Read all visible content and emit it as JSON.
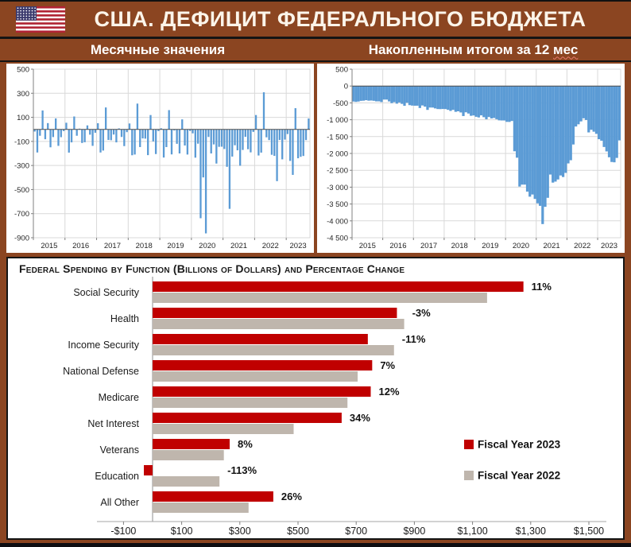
{
  "header": {
    "title": "США. ДЕФИЦИТ ФЕДЕРАЛЬНОГО БЮДЖЕТА",
    "flag": "us-flag"
  },
  "panels": {
    "left_title": "Месячные значения",
    "right_title_main": "Накопленным итогом за 12 ",
    "right_title_squiggle": "мес"
  },
  "colors": {
    "background": "#8B4521",
    "bar_blue": "#5B9BD5",
    "fy2023_red": "#C00000",
    "fy2022_gray": "#BFB6AD",
    "panel": "#FFFFFF"
  },
  "chart_data": [
    {
      "type": "bar",
      "title": "Месячные значения",
      "bar_color": "#5B9BD5",
      "bar_gap": 1.0,
      "margin_left": 34,
      "ylim": [
        -900,
        500
      ],
      "yticks": [
        500,
        300,
        100,
        -100,
        -300,
        -500,
        -700,
        -900
      ],
      "ytick_labels": [
        "500",
        "300",
        "100",
        "-100",
        "-300",
        "-500",
        "-700",
        "-900"
      ],
      "xtick_labels": [
        "2015",
        "2016",
        "2017",
        "2018",
        "2019",
        "2020",
        "2021",
        "2022",
        "2023"
      ],
      "values": [
        -18,
        -192,
        -53,
        157,
        -82,
        52,
        -149,
        -64,
        91,
        -137,
        -65,
        -14,
        55,
        -193,
        -108,
        107,
        -53,
        6,
        -113,
        -107,
        33,
        -44,
        -137,
        -28,
        51,
        -192,
        -176,
        182,
        -88,
        -90,
        -43,
        -108,
        8,
        -63,
        -139,
        -23,
        49,
        -215,
        -209,
        214,
        -147,
        -75,
        -77,
        -214,
        119,
        -100,
        -205,
        -14,
        9,
        -234,
        -147,
        160,
        -208,
        -9,
        -120,
        -200,
        83,
        -134,
        -209,
        -13,
        -33,
        -235,
        -119,
        -738,
        -399,
        -864,
        -63,
        -200,
        -125,
        -284,
        -145,
        -144,
        -163,
        -311,
        -660,
        -226,
        -132,
        -174,
        -302,
        -171,
        -62,
        -165,
        -191,
        -21,
        119,
        -217,
        -193,
        308,
        -66,
        -89,
        -211,
        -220,
        -430,
        -88,
        -249,
        -85,
        -39,
        -262,
        -378,
        176,
        -240,
        -228,
        -221,
        -89,
        90
      ]
    },
    {
      "type": "bar",
      "title": "Накопленным итогом за 12 мес",
      "bar_color": "#5B9BD5",
      "bar_gap": 0,
      "margin_left": 44,
      "ylim": [
        -4500,
        500
      ],
      "yticks": [
        500,
        0,
        -500,
        -1000,
        -1500,
        -2000,
        -2500,
        -3000,
        -3500,
        -4000,
        -4500
      ],
      "ytick_labels": [
        "500",
        "0",
        "-500",
        "-1 000",
        "-1 500",
        "-2 000",
        "-2 500",
        "-3 000",
        "-3 500",
        "-4 000",
        "-4 500"
      ],
      "xtick_labels": [
        "2015",
        "2016",
        "2017",
        "2018",
        "2019",
        "2020",
        "2021",
        "2022",
        "2023"
      ],
      "values": [
        -460,
        -470,
        -460,
        -440,
        -435,
        -420,
        -435,
        -430,
        -439,
        -455,
        -455,
        -475,
        -402,
        -402,
        -457,
        -508,
        -478,
        -523,
        -487,
        -529,
        -587,
        -495,
        -567,
        -580,
        -584,
        -583,
        -652,
        -576,
        -612,
        -708,
        -638,
        -639,
        -664,
        -683,
        -685,
        -681,
        -683,
        -706,
        -739,
        -707,
        -765,
        -750,
        -784,
        -890,
        -779,
        -816,
        -883,
        -873,
        -913,
        -932,
        -870,
        -924,
        -985,
        -919,
        -962,
        -948,
        -984,
        -1018,
        -1022,
        -1022,
        -1063,
        -1065,
        -1037,
        -1935,
        -2126,
        -2982,
        -2925,
        -2925,
        -3132,
        -3282,
        -3218,
        -3349,
        -3479,
        -3554,
        -4095,
        -3583,
        -3316,
        -2626,
        -2865,
        -2835,
        -2772,
        -2653,
        -2699,
        -2577,
        -2296,
        -2201,
        -1734,
        -1201,
        -1135,
        -1049,
        -958,
        -1007,
        -1376,
        -1298,
        -1355,
        -1419,
        -1577,
        -1622,
        -1808,
        -1940,
        -2114,
        -2253,
        -2263,
        -2132,
        -1613
      ]
    },
    {
      "type": "bar-horizontal",
      "title": "Federal Spending by Function (Billions of Dollars) and Percentage Change",
      "categories": [
        "Social Security",
        "Health",
        "Income Security",
        "National Defense",
        "Medicare",
        "Net Interest",
        "Veterans",
        "Education",
        "All Other"
      ],
      "series": [
        {
          "name": "Fiscal Year 2023",
          "color": "#C00000",
          "values": [
            1275,
            840,
            740,
            755,
            750,
            650,
            265,
            -30,
            415
          ]
        },
        {
          "name": "Fiscal Year 2022",
          "color": "#BFB6AD",
          "values": [
            1150,
            865,
            830,
            705,
            670,
            485,
            245,
            230,
            330
          ]
        }
      ],
      "pct_labels": [
        "11%",
        "-3%",
        "-11%",
        "7%",
        "12%",
        "34%",
        "8%",
        "-113%",
        "26%"
      ],
      "xticks": [
        -100,
        100,
        300,
        500,
        700,
        900,
        1100,
        1300,
        1500
      ],
      "xtick_labels": [
        "-$100",
        "$100",
        "$300",
        "$500",
        "$700",
        "$900",
        "$1,100",
        "$1,300",
        "$1,500"
      ],
      "legend": [
        "Fiscal Year 2023",
        "Fiscal Year 2022"
      ]
    }
  ]
}
